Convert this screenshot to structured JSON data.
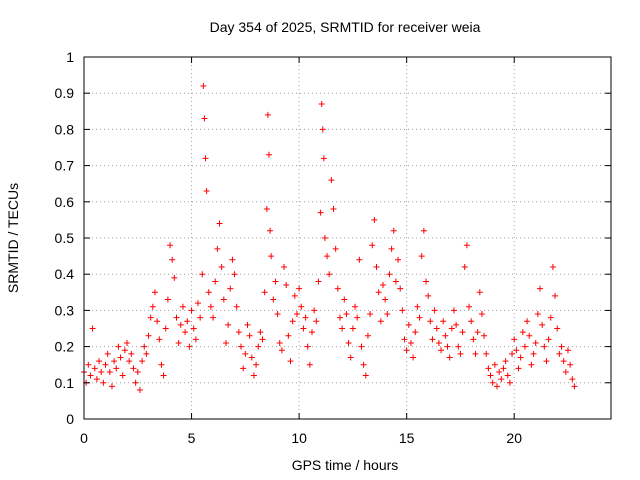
{
  "chart_data": {
    "type": "scatter",
    "title": "Day 354 of 2025, SRMTID for receiver weia",
    "xlabel": "GPS time / hours",
    "ylabel": "SRMTID / TECUs",
    "xlim": [
      0,
      24.5
    ],
    "ylim": [
      0,
      1
    ],
    "xticks": [
      0,
      5,
      10,
      15,
      20
    ],
    "xtick_labels": [
      "0",
      "5",
      "10",
      "15",
      "20"
    ],
    "yticks": [
      0,
      0.1,
      0.2,
      0.3,
      0.4,
      0.5,
      0.6,
      0.7,
      0.8,
      0.9,
      1
    ],
    "ytick_labels": [
      "0",
      "0.1",
      "0.2",
      "0.3",
      "0.4",
      "0.5",
      "0.6",
      "0.7",
      "0.8",
      "0.9",
      "1"
    ],
    "grid": true,
    "marker": "+",
    "marker_color": "#ff0000",
    "legend": "none",
    "series": [
      {
        "name": "SRMTID",
        "x": [
          0.0,
          0.1,
          0.2,
          0.3,
          0.4,
          0.5,
          0.6,
          0.7,
          0.8,
          0.9,
          1.0,
          1.1,
          1.2,
          1.3,
          1.4,
          1.5,
          1.6,
          1.7,
          1.8,
          1.9,
          2.0,
          2.1,
          2.2,
          2.3,
          2.4,
          2.5,
          2.6,
          2.7,
          2.8,
          2.9,
          3.0,
          3.1,
          3.2,
          3.3,
          3.4,
          3.5,
          3.6,
          3.7,
          3.8,
          3.9,
          4.0,
          4.1,
          4.2,
          4.3,
          4.4,
          4.5,
          4.6,
          4.7,
          4.8,
          4.9,
          5.0,
          5.1,
          5.2,
          5.3,
          5.4,
          5.5,
          5.55,
          5.6,
          5.65,
          5.7,
          5.8,
          5.9,
          6.0,
          6.1,
          6.2,
          6.3,
          6.4,
          6.5,
          6.6,
          6.7,
          6.8,
          6.9,
          7.0,
          7.1,
          7.2,
          7.3,
          7.4,
          7.5,
          7.6,
          7.7,
          7.8,
          7.9,
          8.0,
          8.1,
          8.2,
          8.3,
          8.4,
          8.5,
          8.55,
          8.6,
          8.65,
          8.7,
          8.8,
          8.9,
          9.0,
          9.1,
          9.2,
          9.3,
          9.4,
          9.5,
          9.6,
          9.7,
          9.8,
          9.9,
          10.0,
          10.1,
          10.2,
          10.3,
          10.4,
          10.5,
          10.6,
          10.7,
          10.8,
          10.9,
          11.0,
          11.05,
          11.1,
          11.15,
          11.2,
          11.3,
          11.4,
          11.5,
          11.6,
          11.7,
          11.8,
          11.9,
          12.0,
          12.1,
          12.2,
          12.3,
          12.4,
          12.5,
          12.6,
          12.7,
          12.8,
          12.9,
          13.0,
          13.1,
          13.2,
          13.3,
          13.4,
          13.5,
          13.6,
          13.7,
          13.8,
          13.9,
          14.0,
          14.1,
          14.2,
          14.3,
          14.4,
          14.5,
          14.6,
          14.7,
          14.8,
          14.9,
          15.0,
          15.1,
          15.2,
          15.3,
          15.4,
          15.5,
          15.6,
          15.7,
          15.8,
          15.9,
          16.0,
          16.1,
          16.2,
          16.3,
          16.4,
          16.5,
          16.6,
          16.7,
          16.8,
          16.9,
          17.0,
          17.1,
          17.2,
          17.3,
          17.4,
          17.5,
          17.6,
          17.7,
          17.8,
          17.9,
          18.0,
          18.1,
          18.2,
          18.3,
          18.4,
          18.5,
          18.6,
          18.7,
          18.8,
          18.9,
          19.0,
          19.1,
          19.2,
          19.3,
          19.4,
          19.5,
          19.6,
          19.7,
          19.8,
          19.9,
          20.0,
          20.1,
          20.2,
          20.3,
          20.4,
          20.5,
          20.6,
          20.7,
          20.8,
          20.9,
          21.0,
          21.1,
          21.2,
          21.3,
          21.4,
          21.5,
          21.6,
          21.7,
          21.8,
          21.9,
          22.0,
          22.1,
          22.2,
          22.3,
          22.4,
          22.5,
          22.6,
          22.7,
          22.8
        ],
        "y": [
          0.13,
          0.1,
          0.15,
          0.12,
          0.25,
          0.14,
          0.11,
          0.16,
          0.13,
          0.1,
          0.15,
          0.18,
          0.13,
          0.09,
          0.16,
          0.14,
          0.2,
          0.17,
          0.12,
          0.19,
          0.21,
          0.16,
          0.18,
          0.14,
          0.1,
          0.13,
          0.08,
          0.16,
          0.2,
          0.18,
          0.23,
          0.28,
          0.31,
          0.35,
          0.27,
          0.22,
          0.15,
          0.12,
          0.25,
          0.33,
          0.48,
          0.44,
          0.39,
          0.28,
          0.21,
          0.26,
          0.31,
          0.24,
          0.27,
          0.2,
          0.3,
          0.25,
          0.22,
          0.32,
          0.28,
          0.4,
          0.92,
          0.83,
          0.72,
          0.63,
          0.35,
          0.31,
          0.28,
          0.38,
          0.47,
          0.54,
          0.42,
          0.33,
          0.21,
          0.26,
          0.36,
          0.44,
          0.4,
          0.31,
          0.24,
          0.2,
          0.14,
          0.18,
          0.26,
          0.23,
          0.17,
          0.12,
          0.15,
          0.2,
          0.24,
          0.22,
          0.35,
          0.58,
          0.84,
          0.73,
          0.52,
          0.45,
          0.33,
          0.38,
          0.29,
          0.21,
          0.19,
          0.42,
          0.37,
          0.23,
          0.16,
          0.27,
          0.34,
          0.29,
          0.36,
          0.31,
          0.25,
          0.28,
          0.2,
          0.15,
          0.24,
          0.3,
          0.27,
          0.38,
          0.57,
          0.87,
          0.8,
          0.72,
          0.5,
          0.45,
          0.4,
          0.66,
          0.58,
          0.47,
          0.36,
          0.28,
          0.25,
          0.33,
          0.29,
          0.21,
          0.17,
          0.25,
          0.31,
          0.28,
          0.44,
          0.2,
          0.15,
          0.12,
          0.23,
          0.29,
          0.48,
          0.55,
          0.42,
          0.35,
          0.27,
          0.37,
          0.33,
          0.29,
          0.4,
          0.47,
          0.52,
          0.38,
          0.44,
          0.36,
          0.3,
          0.22,
          0.19,
          0.26,
          0.21,
          0.17,
          0.24,
          0.31,
          0.28,
          0.45,
          0.52,
          0.38,
          0.34,
          0.27,
          0.22,
          0.3,
          0.25,
          0.21,
          0.19,
          0.27,
          0.23,
          0.2,
          0.17,
          0.25,
          0.3,
          0.26,
          0.2,
          0.18,
          0.24,
          0.42,
          0.48,
          0.31,
          0.27,
          0.22,
          0.18,
          0.24,
          0.35,
          0.29,
          0.23,
          0.18,
          0.14,
          0.12,
          0.1,
          0.15,
          0.09,
          0.13,
          0.11,
          0.14,
          0.16,
          0.12,
          0.1,
          0.18,
          0.22,
          0.19,
          0.14,
          0.17,
          0.24,
          0.2,
          0.27,
          0.23,
          0.15,
          0.18,
          0.21,
          0.29,
          0.36,
          0.26,
          0.2,
          0.16,
          0.22,
          0.28,
          0.42,
          0.34,
          0.25,
          0.18,
          0.2,
          0.16,
          0.13,
          0.19,
          0.15,
          0.11,
          0.09
        ]
      }
    ]
  }
}
